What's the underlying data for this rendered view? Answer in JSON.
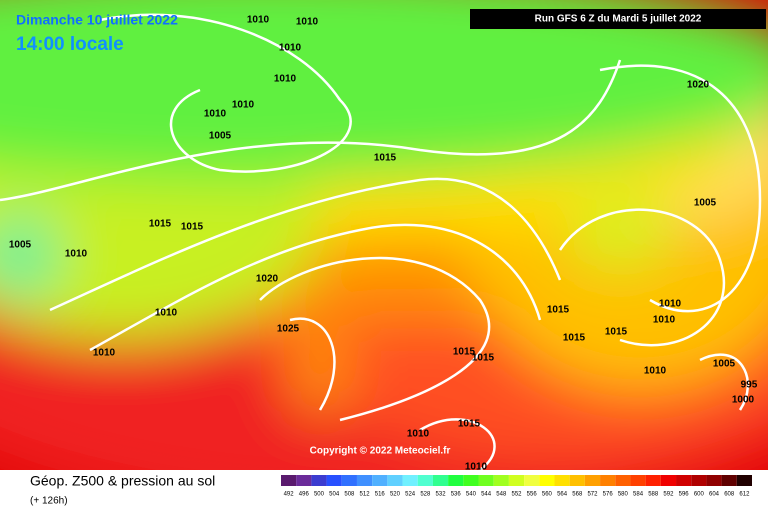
{
  "header": {
    "date": "Dimanche 10 juillet 2022",
    "time": "14:00 locale",
    "run": "Run GFS 6 Z du Mardi 5 juillet 2022",
    "copyright": "Copyright © 2022 Meteociel.fr"
  },
  "footer": {
    "title": "Géop. Z500 & pression au sol",
    "lead": "(+ 126h)"
  },
  "isobar_labels": [
    "1010",
    "1010",
    "1010",
    "1010",
    "1010",
    "1010",
    "1005",
    "1015",
    "1020",
    "1005",
    "1015",
    "1015",
    "1005",
    "1010",
    "1020",
    "1010",
    "1025",
    "1010",
    "1010",
    "1010",
    "1015",
    "1015",
    "1015",
    "1015",
    "1015",
    "1010",
    "1005",
    "995",
    "1000",
    "1015",
    "1010",
    "1010"
  ],
  "scale": {
    "values": [
      492,
      496,
      500,
      504,
      508,
      512,
      516,
      520,
      524,
      528,
      532,
      536,
      540,
      544,
      548,
      552,
      556,
      560,
      564,
      568,
      572,
      576,
      580,
      584,
      588,
      592,
      596,
      600,
      604,
      608,
      612
    ],
    "colors": [
      "#5a1a6e",
      "#6b2b9a",
      "#3c3cd0",
      "#2850ff",
      "#3070ff",
      "#4090ff",
      "#50b0ff",
      "#60d0ff",
      "#70f0ff",
      "#50ffd0",
      "#30ff90",
      "#20ff40",
      "#40ff20",
      "#70ff20",
      "#a0ff20",
      "#d0ff20",
      "#f0ff40",
      "#ffff00",
      "#ffe000",
      "#ffc000",
      "#ffa000",
      "#ff8000",
      "#ff6000",
      "#ff4000",
      "#ff2000",
      "#f00000",
      "#d00000",
      "#b00000",
      "#900000",
      "#600000",
      "#200000"
    ]
  }
}
